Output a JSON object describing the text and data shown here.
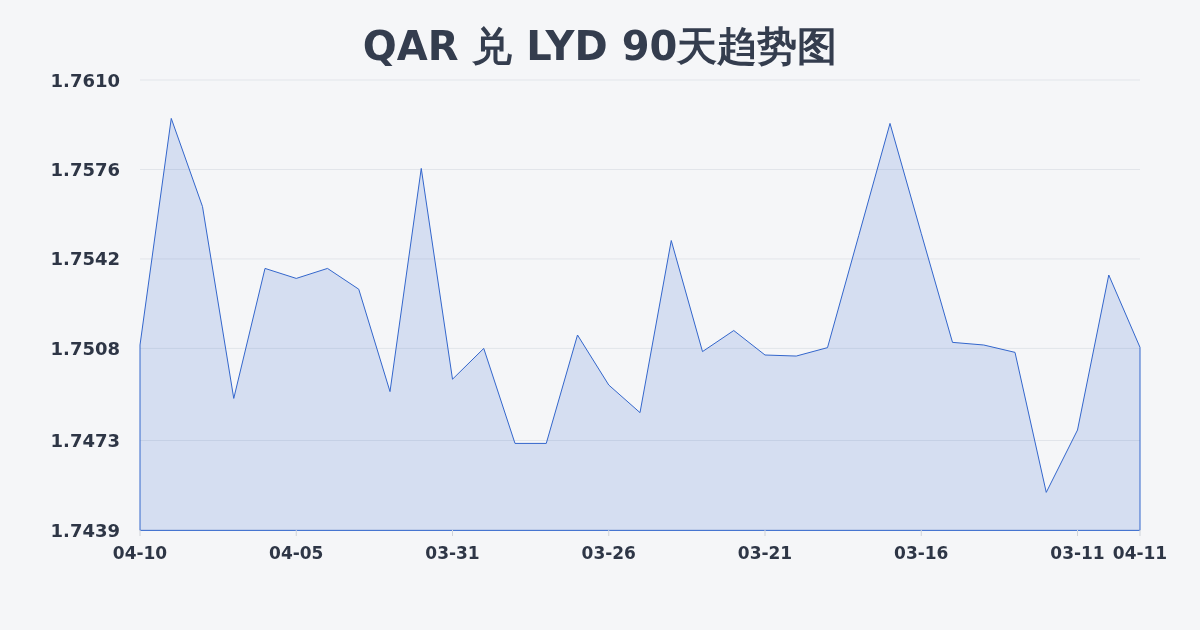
{
  "chart_data": {
    "type": "area",
    "title": "QAR 兑 LYD 90天趋势图",
    "categories": [
      "04-10",
      null,
      null,
      null,
      null,
      "04-05",
      null,
      null,
      null,
      null,
      "03-31",
      null,
      null,
      null,
      null,
      "03-26",
      null,
      null,
      null,
      null,
      "03-21",
      null,
      null,
      null,
      null,
      "03-16",
      null,
      null,
      null,
      null,
      "03-11",
      null,
      "04-11"
    ],
    "values": [
      1.75093,
      1.75954,
      1.75619,
      1.7489,
      1.75384,
      1.75346,
      1.75384,
      1.75305,
      1.74916,
      1.75764,
      1.74963,
      1.7508,
      1.74719,
      1.74719,
      1.75131,
      1.74941,
      1.74836,
      1.7549,
      1.75068,
      1.75148,
      1.75055,
      1.75051,
      1.75083,
      1.75509,
      1.75935,
      1.75517,
      1.75103,
      1.75093,
      1.75065,
      1.74533,
      1.7477,
      1.75359,
      1.75084
    ],
    "color": "#3366cc",
    "ylim": [
      1.7439,
      1.761
    ],
    "yticks": [
      1.7439,
      1.7473,
      1.7508,
      1.7542,
      1.7576,
      {
        "value": 1.761,
        "label": "1.7610"
      }
    ],
    "grid": "y"
  }
}
